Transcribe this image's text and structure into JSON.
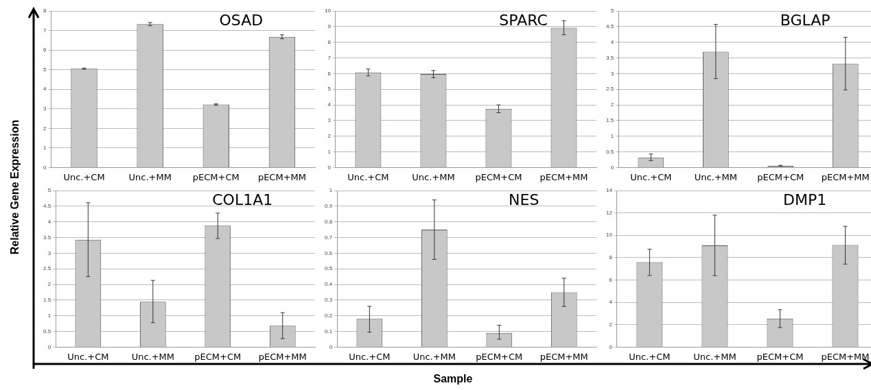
{
  "chart_data": [
    {
      "type": "bar",
      "title": "OSAD",
      "ylabel": "Relative Gene Expression",
      "categories": [
        "Unc.+CM",
        "Unc.+MM",
        "pECM+CM",
        "pECM+MM"
      ],
      "values": [
        5.05,
        7.33,
        3.22,
        6.68
      ],
      "errors": [
        0.03,
        0.08,
        0.03,
        0.1
      ],
      "color": "#c8c8c8",
      "ylim": [
        0,
        8
      ],
      "yticks": [
        0,
        1,
        2,
        3,
        4,
        5,
        6,
        7,
        8
      ],
      "grid": "y"
    },
    {
      "type": "bar",
      "title": "SPARC",
      "categories": [
        "Unc.+CM",
        "Unc.+MM",
        "pECM+CM",
        "pECM+MM"
      ],
      "values": [
        6.07,
        5.97,
        3.75,
        8.93
      ],
      "errors": [
        0.22,
        0.23,
        0.25,
        0.45
      ],
      "color": "#c8c8c8",
      "ylim": [
        0,
        10
      ],
      "yticks": [
        0,
        1,
        2,
        3,
        4,
        5,
        6,
        7,
        8,
        9,
        10
      ],
      "grid": "y"
    },
    {
      "type": "bar",
      "title": "BGLAP",
      "categories": [
        "Unc.+CM",
        "Unc.+MM",
        "pECM+CM",
        "pECM+MM"
      ],
      "values": [
        0.32,
        3.7,
        0.05,
        3.31
      ],
      "errors": [
        [
          0.22,
          0.43
        ],
        [
          2.84,
          4.57
        ],
        [
          0.04,
          0.07
        ],
        [
          2.48,
          4.16
        ]
      ],
      "color": "#c8c8c8",
      "ylim": [
        0,
        5
      ],
      "yticks": [
        0,
        0.5,
        1,
        1.5,
        2,
        2.5,
        3,
        3.5,
        4,
        4.5,
        5
      ],
      "grid": "y"
    },
    {
      "type": "bar",
      "title": "COL1A1",
      "categories": [
        "Unc.+CM",
        "Unc.+MM",
        "pECM+CM",
        "pECM+MM"
      ],
      "values": [
        3.43,
        1.45,
        3.88,
        0.68
      ],
      "errors": [
        [
          2.25,
          4.61
        ],
        [
          0.78,
          2.13
        ],
        [
          3.47,
          4.28
        ],
        [
          0.27,
          1.1
        ]
      ],
      "color": "#c8c8c8",
      "ylim": [
        0,
        5
      ],
      "yticks": [
        0,
        0.5,
        1,
        1.5,
        2,
        2.5,
        3,
        3.5,
        4,
        4.5,
        5
      ],
      "grid": "y"
    },
    {
      "type": "bar",
      "title": "NES",
      "xlabel": "Sample",
      "categories": [
        "Unc.+CM",
        "Unc.+MM",
        "pECM+CM",
        "pECM+MM"
      ],
      "values": [
        0.18,
        0.75,
        0.09,
        0.35
      ],
      "errors": [
        [
          0.095,
          0.26
        ],
        [
          0.56,
          0.94
        ],
        [
          0.05,
          0.14
        ],
        [
          0.26,
          0.44
        ]
      ],
      "color": "#c8c8c8",
      "ylim": [
        0,
        1
      ],
      "yticks": [
        0,
        0.1,
        0.2,
        0.3,
        0.4,
        0.5,
        0.6,
        0.7,
        0.8,
        0.9,
        1
      ],
      "grid": "y"
    },
    {
      "type": "bar",
      "title": "DMP1",
      "categories": [
        "Unc.+CM",
        "Unc.+MM",
        "pECM+CM",
        "pECM+MM"
      ],
      "values": [
        7.6,
        9.1,
        2.55,
        9.12
      ],
      "errors": [
        [
          6.4,
          8.75
        ],
        [
          6.4,
          11.8
        ],
        [
          1.75,
          3.35
        ],
        [
          7.42,
          10.8
        ]
      ],
      "color": "#c8c8c8",
      "ylim": [
        0,
        14
      ],
      "yticks": [
        0,
        2,
        4,
        6,
        8,
        10,
        12,
        14
      ],
      "grid": "y"
    }
  ]
}
